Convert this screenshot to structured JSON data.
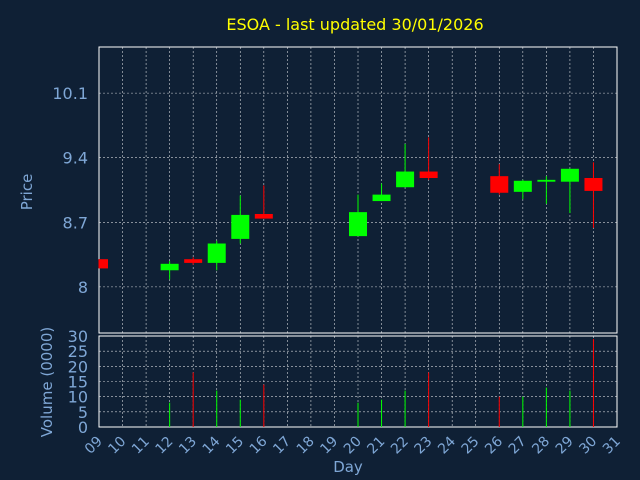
{
  "chart_data": {
    "type": "candlestick",
    "title": "ESOA - last updated 30/01/2026",
    "xlabel": "Day",
    "price_axis": {
      "label": "Price",
      "ticks": [
        "8",
        "8.7",
        "9.4",
        "10.1"
      ],
      "ylim": [
        7.5,
        10.6
      ]
    },
    "volume_axis": {
      "label": "Volume (0000)",
      "ticks": [
        "0",
        "5",
        "10",
        "15",
        "20",
        "25",
        "30"
      ],
      "ylim": [
        0,
        30
      ]
    },
    "x_ticks": [
      "09",
      "10",
      "11",
      "12",
      "13",
      "14",
      "15",
      "16",
      "17",
      "18",
      "19",
      "20",
      "21",
      "22",
      "23",
      "24",
      "25",
      "26",
      "27",
      "28",
      "29",
      "30",
      "31"
    ],
    "grid": true,
    "colors": {
      "up": "#00ff00",
      "down": "#ff0000",
      "title": "#ffff00",
      "axis_text": "#7fa7d6",
      "background": "#0f2035",
      "grid": "#ffffff"
    },
    "candles": [
      {
        "day": "09",
        "open": 8.3,
        "high": 8.3,
        "low": 8.2,
        "close": 8.2
      },
      {
        "day": "12",
        "open": 8.18,
        "high": 8.28,
        "low": 8.08,
        "close": 8.25
      },
      {
        "day": "13",
        "open": 8.3,
        "high": 8.32,
        "low": 8.24,
        "close": 8.26
      },
      {
        "day": "14",
        "open": 8.26,
        "high": 8.5,
        "low": 8.18,
        "close": 8.47
      },
      {
        "day": "15",
        "open": 8.52,
        "high": 8.99,
        "low": 8.47,
        "close": 8.78
      },
      {
        "day": "16",
        "open": 8.79,
        "high": 9.1,
        "low": 8.74,
        "close": 8.74
      },
      {
        "day": "20",
        "open": 8.55,
        "high": 9.0,
        "low": 8.55,
        "close": 8.81
      },
      {
        "day": "21",
        "open": 8.93,
        "high": 9.12,
        "low": 8.93,
        "close": 9.0
      },
      {
        "day": "22",
        "open": 9.08,
        "high": 9.55,
        "low": 9.08,
        "close": 9.25
      },
      {
        "day": "23",
        "open": 9.25,
        "high": 9.62,
        "low": 9.16,
        "close": 9.18
      },
      {
        "day": "26",
        "open": 9.2,
        "high": 9.33,
        "low": 9.0,
        "close": 9.02
      },
      {
        "day": "27",
        "open": 9.03,
        "high": 9.16,
        "low": 8.95,
        "close": 9.15
      },
      {
        "day": "28",
        "open": 9.14,
        "high": 9.2,
        "low": 8.9,
        "close": 9.16
      },
      {
        "day": "29",
        "open": 9.14,
        "high": 9.28,
        "low": 8.8,
        "close": 9.28
      },
      {
        "day": "30",
        "open": 9.18,
        "high": 9.35,
        "low": 8.64,
        "close": 9.04
      }
    ],
    "volume": [
      {
        "day": "09",
        "value": 0,
        "direction": "down"
      },
      {
        "day": "12",
        "value": 8,
        "direction": "up"
      },
      {
        "day": "13",
        "value": 18,
        "direction": "down"
      },
      {
        "day": "14",
        "value": 12,
        "direction": "up"
      },
      {
        "day": "15",
        "value": 9,
        "direction": "up"
      },
      {
        "day": "16",
        "value": 14,
        "direction": "down"
      },
      {
        "day": "20",
        "value": 8,
        "direction": "up"
      },
      {
        "day": "21",
        "value": 9,
        "direction": "up"
      },
      {
        "day": "22",
        "value": 12,
        "direction": "up"
      },
      {
        "day": "23",
        "value": 18,
        "direction": "down"
      },
      {
        "day": "26",
        "value": 10,
        "direction": "down"
      },
      {
        "day": "27",
        "value": 10,
        "direction": "up"
      },
      {
        "day": "28",
        "value": 13,
        "direction": "up"
      },
      {
        "day": "29",
        "value": 12,
        "direction": "up"
      },
      {
        "day": "30",
        "value": 29,
        "direction": "down"
      }
    ]
  }
}
